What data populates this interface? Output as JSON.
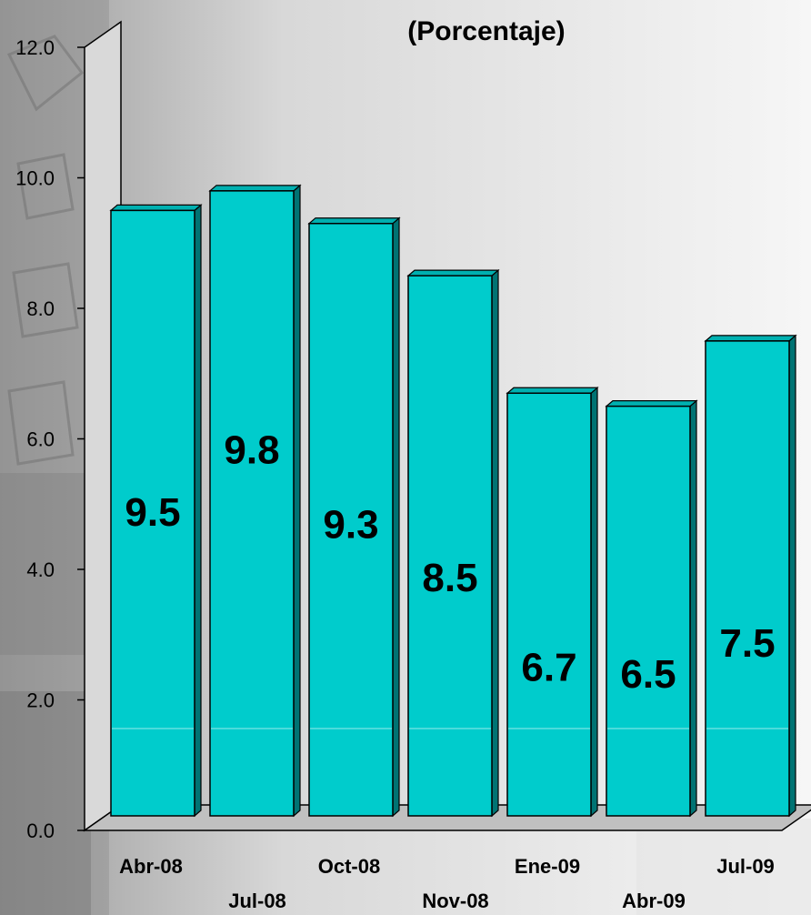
{
  "chart_data": {
    "type": "bar",
    "title": "(Porcentaje)",
    "xlabel": "",
    "ylabel": "",
    "categories": [
      "Abr-08",
      "Jul-08",
      "Oct-08",
      "Nov-08",
      "Ene-09",
      "Abr-09",
      "Jul-09"
    ],
    "values": [
      9.5,
      9.8,
      9.3,
      8.5,
      6.7,
      6.5,
      7.5
    ],
    "data_labels": [
      "9.5",
      "9.8",
      "9.3",
      "8.5",
      "6.7",
      "6.5",
      "7.5"
    ],
    "yticks": [
      "0.0",
      "2.0",
      "4.0",
      "6.0",
      "8.0",
      "10.0",
      "12.0"
    ],
    "ylim": [
      0,
      12
    ],
    "grid": false,
    "legend": "none",
    "style": "3d-bar"
  },
  "colors": {
    "bar_front": "#00cccc",
    "bar_side": "#007373",
    "bar_top": "#00b0b0",
    "wall": "#d9d9d9",
    "floor": "#c0c0c0",
    "bar_band": "#66e0e0"
  }
}
